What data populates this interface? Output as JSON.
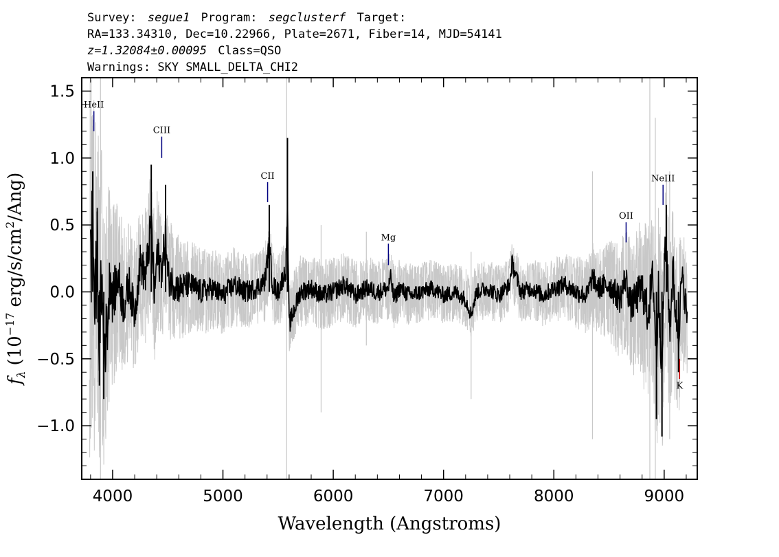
{
  "header": {
    "line1": {
      "survey_label": "Survey:",
      "survey": "segue1",
      "program_label": "Program:",
      "program": "segclusterf",
      "target_label": "Target:"
    },
    "line2": "RA=133.34310, Dec=10.22966, Plate=2671, Fiber=14, MJD=54141",
    "line3": {
      "redshift": "z=1.32084±0.00095",
      "class": "Class=QSO"
    },
    "line4": "Warnings: SKY SMALL_DELTA_CHI2"
  },
  "chart_data": {
    "type": "line",
    "xlabel": "Wavelength (Angstroms)",
    "ylabel": "f",
    "ylabel_sub": "λ",
    "ylabel_rest": "(10",
    "ylabel_exp": "−17",
    "ylabel_units": "erg/s/cm",
    "ylabel_units_exp": "2",
    "ylabel_units_end": "/Ang)",
    "xlim": [
      3720,
      9300
    ],
    "ylim": [
      -1.4,
      1.6
    ],
    "xticks": [
      4000,
      5000,
      6000,
      7000,
      8000,
      9000
    ],
    "xtick_labels": [
      "4000",
      "5000",
      "6000",
      "7000",
      "8000",
      "9000"
    ],
    "yticks": [
      -1.0,
      -0.5,
      0.0,
      0.5,
      1.0,
      1.5
    ],
    "ytick_labels": [
      "−1.0",
      "−0.5",
      "0.0",
      "0.5",
      "1.0",
      "1.5"
    ],
    "series": [
      {
        "role": "error",
        "color": "#c8c8c8",
        "description_values": "approximate envelope of gray noise/error spectrum",
        "x": [
          3800,
          3850,
          3900,
          3950,
          4000,
          4100,
          4200,
          4300,
          4400,
          4500,
          4700,
          5000,
          5500,
          6000,
          6500,
          7000,
          7500,
          8000,
          8300,
          8500,
          8700,
          8850,
          8950,
          9050,
          9150,
          9210
        ],
        "upper": [
          1.6,
          1.3,
          1.1,
          0.9,
          0.7,
          0.55,
          0.5,
          0.55,
          0.6,
          0.5,
          0.35,
          0.3,
          0.28,
          0.26,
          0.24,
          0.22,
          0.22,
          0.24,
          0.28,
          0.35,
          0.45,
          0.6,
          0.7,
          0.6,
          0.5,
          0.4
        ],
        "lower": [
          -1.4,
          -1.3,
          -1.1,
          -0.9,
          -0.7,
          -0.55,
          -0.5,
          -0.5,
          -0.5,
          -0.45,
          -0.35,
          -0.3,
          -0.28,
          -0.26,
          -0.24,
          -0.22,
          -0.22,
          -0.24,
          -0.3,
          -0.4,
          -0.55,
          -0.75,
          -0.9,
          -0.8,
          -0.7,
          -0.5
        ]
      },
      {
        "role": "flux",
        "color": "#000000",
        "description_values": "approximate main flux trace",
        "x": [
          3800,
          3820,
          3840,
          3860,
          3880,
          3900,
          3920,
          3950,
          3980,
          4000,
          4050,
          4100,
          4150,
          4200,
          4250,
          4300,
          4350,
          4380,
          4400,
          4450,
          4480,
          4500,
          4600,
          4700,
          4800,
          4900,
          5000,
          5100,
          5200,
          5300,
          5380,
          5420,
          5450,
          5500,
          5570,
          5585,
          5600,
          5700,
          5800,
          5900,
          6000,
          6100,
          6200,
          6300,
          6400,
          6500,
          6520,
          6550,
          6600,
          6700,
          6800,
          6900,
          7000,
          7100,
          7200,
          7250,
          7300,
          7400,
          7500,
          7600,
          7620,
          7700,
          7800,
          7900,
          8000,
          8100,
          8200,
          8300,
          8350,
          8400,
          8500,
          8600,
          8650,
          8700,
          8800,
          8850,
          8900,
          8930,
          8950,
          8980,
          9000,
          9020,
          9050,
          9080,
          9100,
          9130,
          9160,
          9190,
          9210
        ],
        "y": [
          0.4,
          0.9,
          -0.3,
          0.6,
          -0.7,
          0.2,
          -0.8,
          -0.5,
          0.3,
          -0.1,
          0.2,
          -0.2,
          0.1,
          -0.3,
          0.4,
          0.2,
          0.95,
          -0.1,
          0.5,
          0.3,
          0.8,
          0.2,
          0.05,
          0.1,
          0.0,
          0.05,
          -0.05,
          0.1,
          0.0,
          0.05,
          0.15,
          0.65,
          0.1,
          0.0,
          0.3,
          1.15,
          -0.45,
          0.0,
          0.05,
          -0.05,
          0.0,
          0.1,
          -0.05,
          0.05,
          0.0,
          0.05,
          0.2,
          -0.1,
          0.05,
          -0.05,
          0.0,
          0.05,
          -0.05,
          0.0,
          -0.1,
          -0.3,
          0.0,
          0.05,
          -0.05,
          0.1,
          0.4,
          0.0,
          0.05,
          -0.05,
          0.05,
          0.1,
          0.0,
          -0.05,
          0.2,
          0.05,
          0.1,
          -0.1,
          0.2,
          -0.2,
          0.05,
          -0.3,
          0.2,
          -0.95,
          0.1,
          -1.08,
          0.3,
          0.65,
          -0.5,
          0.3,
          -0.2,
          -0.6,
          0.2,
          -0.1,
          -0.35
        ]
      }
    ],
    "line_markers": [
      {
        "label": "HeII",
        "x": 3830,
        "y_from": 1.2,
        "y_to": 1.35,
        "color": "#000080",
        "text_above": true
      },
      {
        "label": "CIII",
        "x": 4445,
        "y_from": 1.0,
        "y_to": 1.16,
        "color": "#000080",
        "text_above": true
      },
      {
        "label": "CII",
        "x": 5405,
        "y_from": 0.67,
        "y_to": 0.82,
        "color": "#000080",
        "text_above": true
      },
      {
        "label": "Mg",
        "x": 6500,
        "y_from": 0.2,
        "y_to": 0.36,
        "color": "#000080",
        "text_above": true
      },
      {
        "label": "OII",
        "x": 8655,
        "y_from": 0.37,
        "y_to": 0.52,
        "color": "#000080",
        "text_above": true
      },
      {
        "label": "NeIII",
        "x": 8990,
        "y_from": 0.65,
        "y_to": 0.8,
        "color": "#000080",
        "text_above": true
      },
      {
        "label": "K",
        "x": 9140,
        "y_from": -0.65,
        "y_to": -0.5,
        "color": "#cc0000",
        "text_above": false
      }
    ]
  }
}
